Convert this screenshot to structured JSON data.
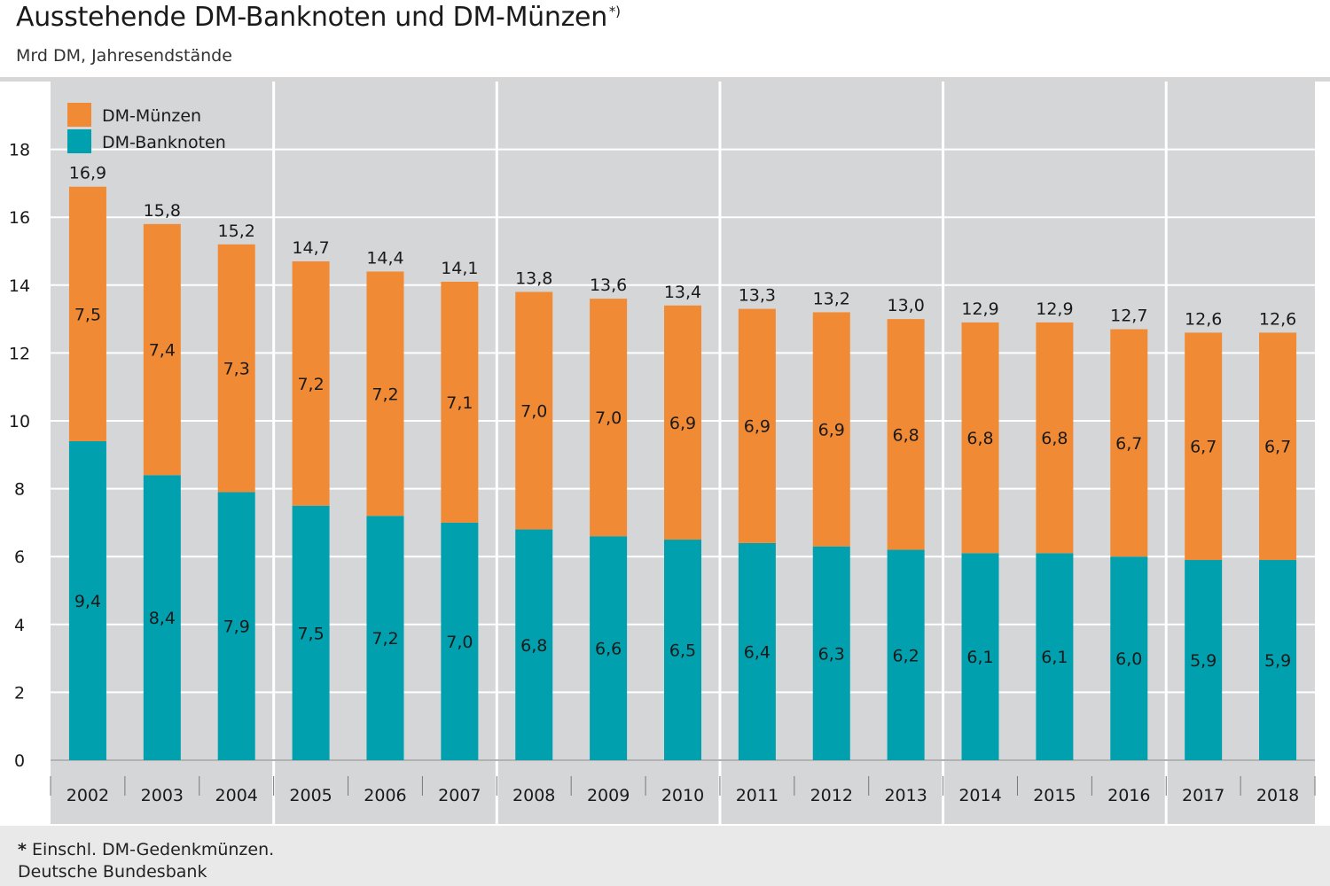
{
  "title": "Ausstehende DM-Banknoten und DM-Münzen",
  "title_mark": "*)",
  "subtitle": "Mrd DM, Jahresendstände",
  "footnote_mark": "*",
  "footnote": "Einschl. DM-Gedenkmünzen.",
  "source": "Deutsche Bundesbank",
  "colors": {
    "plot_bg": "#d5d6d8",
    "grid": "#ffffff",
    "coins": "#f18a35",
    "notes": "#00a0ae"
  },
  "chart_data": {
    "type": "bar",
    "stacked": true,
    "categories": [
      "2002",
      "2003",
      "2004",
      "2005",
      "2006",
      "2007",
      "2008",
      "2009",
      "2010",
      "2011",
      "2012",
      "2013",
      "2014",
      "2015",
      "2016",
      "2017",
      "2018"
    ],
    "series": [
      {
        "name": "DM-Banknoten",
        "values": [
          9.4,
          8.4,
          7.9,
          7.5,
          7.2,
          7.0,
          6.8,
          6.6,
          6.5,
          6.4,
          6.3,
          6.2,
          6.1,
          6.1,
          6.0,
          5.9,
          5.9
        ],
        "labels": [
          "9,4",
          "8,4",
          "7,9",
          "7,5",
          "7,2",
          "7,0",
          "6,8",
          "6,6",
          "6,5",
          "6,4",
          "6,3",
          "6,2",
          "6,1",
          "6,1",
          "6,0",
          "5,9",
          "5,9"
        ]
      },
      {
        "name": "DM-Münzen",
        "values": [
          7.5,
          7.4,
          7.3,
          7.2,
          7.2,
          7.1,
          7.0,
          7.0,
          6.9,
          6.9,
          6.9,
          6.8,
          6.8,
          6.8,
          6.7,
          6.7,
          6.7
        ],
        "labels": [
          "7,5",
          "7,4",
          "7,3",
          "7,2",
          "7,2",
          "7,1",
          "7,0",
          "7,0",
          "6,9",
          "6,9",
          "6,9",
          "6,8",
          "6,8",
          "6,8",
          "6,7",
          "6,7",
          "6,7"
        ]
      }
    ],
    "totals": [
      16.9,
      15.8,
      15.2,
      14.7,
      14.4,
      14.1,
      13.8,
      13.6,
      13.4,
      13.3,
      13.2,
      13.0,
      12.9,
      12.9,
      12.7,
      12.6,
      12.6
    ],
    "total_labels": [
      "16,9",
      "15,8",
      "15,2",
      "14,7",
      "14,4",
      "14,1",
      "13,8",
      "13,6",
      "13,4",
      "13,3",
      "13,2",
      "13,0",
      "12,9",
      "12,9",
      "12,7",
      "12,6",
      "12,6"
    ],
    "ylim": [
      0,
      19.5
    ],
    "yticks": [
      0,
      2,
      4,
      6,
      8,
      10,
      12,
      14,
      16,
      18
    ],
    "ytick_labels": [
      "0",
      "2",
      "4",
      "6",
      "8",
      "10",
      "12",
      "14",
      "16",
      "18"
    ],
    "year_groups": [
      3,
      3,
      3,
      3,
      3,
      2
    ],
    "legend_order": [
      "DM-Münzen",
      "DM-Banknoten"
    ],
    "legend_position": "top-left",
    "grid": true
  }
}
